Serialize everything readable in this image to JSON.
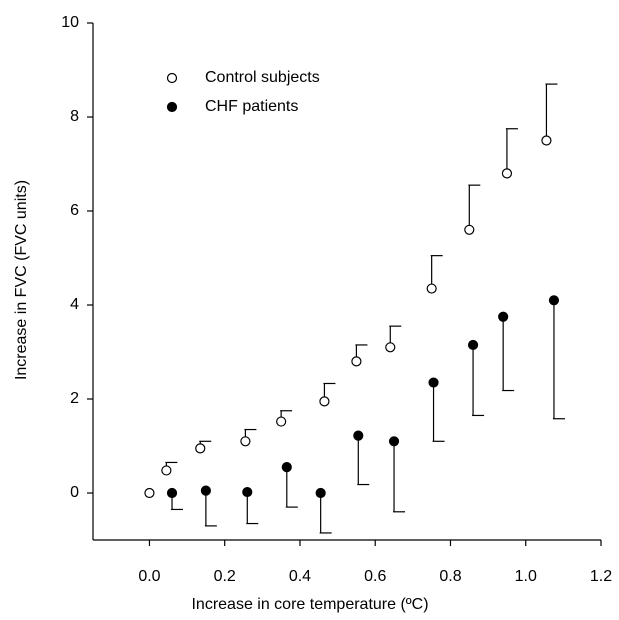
{
  "chart_data": {
    "type": "scatter",
    "x_label": "Increase in core temperature (ºC)",
    "y_label": "Increase in FVC  (FVC units)",
    "xlim": [
      -0.15,
      1.2
    ],
    "ylim": [
      -1,
      10
    ],
    "xticks": [
      {
        "value": 0,
        "label": "0.0"
      },
      0.2,
      0.4,
      0.6,
      0.8,
      {
        "value": 1,
        "label": "1.0"
      },
      1.2
    ],
    "yticks": [
      0,
      2,
      4,
      6,
      8,
      10
    ],
    "legend": "upper left",
    "series": [
      {
        "name": "Control subjects",
        "color": "#000000",
        "filled": false,
        "error_direction": "up",
        "x": [
          0,
          0.045,
          0.135,
          0.255,
          0.35,
          0.465,
          0.55,
          0.64,
          0.75,
          0.85,
          0.95,
          1.055
        ],
        "values": [
          0,
          0.48,
          0.95,
          1.1,
          1.52,
          1.95,
          2.8,
          3.1,
          4.35,
          5.6,
          6.8,
          7.5
        ],
        "errors": [
          null,
          0.17,
          0.15,
          0.25,
          0.23,
          0.38,
          0.35,
          0.45,
          0.7,
          0.95,
          0.95,
          1.2
        ]
      },
      {
        "name": "CHF patients",
        "color": "#000000",
        "filled": true,
        "error_direction": "down",
        "x": [
          0.06,
          0.15,
          0.26,
          0.365,
          0.455,
          0.555,
          0.65,
          0.755,
          0.86,
          0.94,
          1.075
        ],
        "values": [
          0,
          0.05,
          0.02,
          0.55,
          0,
          1.22,
          1.1,
          2.35,
          3.15,
          3.75,
          4.1
        ],
        "errors": [
          0.35,
          0.75,
          0.67,
          0.85,
          0.85,
          1.04,
          1.5,
          1.25,
          1.5,
          1.57,
          2.52
        ]
      }
    ]
  }
}
